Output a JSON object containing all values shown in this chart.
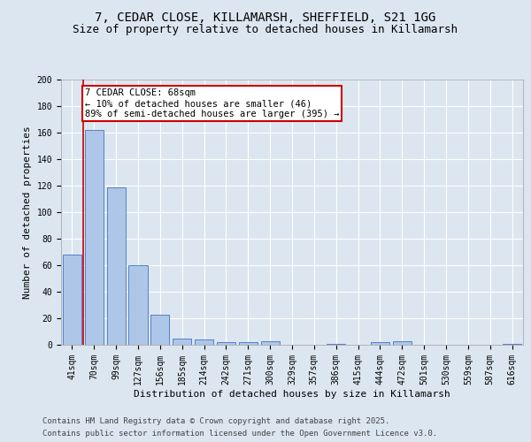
{
  "title_line1": "7, CEDAR CLOSE, KILLAMARSH, SHEFFIELD, S21 1GG",
  "title_line2": "Size of property relative to detached houses in Killamarsh",
  "xlabel": "Distribution of detached houses by size in Killamarsh",
  "ylabel": "Number of detached properties",
  "categories": [
    "41sqm",
    "70sqm",
    "99sqm",
    "127sqm",
    "156sqm",
    "185sqm",
    "214sqm",
    "242sqm",
    "271sqm",
    "300sqm",
    "329sqm",
    "357sqm",
    "386sqm",
    "415sqm",
    "444sqm",
    "472sqm",
    "501sqm",
    "530sqm",
    "559sqm",
    "587sqm",
    "616sqm"
  ],
  "values": [
    68,
    162,
    119,
    60,
    23,
    5,
    4,
    2,
    2,
    3,
    0,
    0,
    1,
    0,
    2,
    3,
    0,
    0,
    0,
    0,
    1
  ],
  "bar_color": "#aec6e8",
  "bar_edge_color": "#4472c4",
  "annotation_text": "7 CEDAR CLOSE: 68sqm\n← 10% of detached houses are smaller (46)\n89% of semi-detached houses are larger (395) →",
  "annotation_box_color": "#ffffff",
  "annotation_box_edge_color": "#cc0000",
  "subject_line_color": "#cc0000",
  "ylim": [
    0,
    200
  ],
  "yticks": [
    0,
    20,
    40,
    60,
    80,
    100,
    120,
    140,
    160,
    180,
    200
  ],
  "footer_line1": "Contains HM Land Registry data © Crown copyright and database right 2025.",
  "footer_line2": "Contains public sector information licensed under the Open Government Licence v3.0.",
  "background_color": "#dce6f0",
  "title_fontsize": 10,
  "subtitle_fontsize": 9,
  "axis_label_fontsize": 8,
  "tick_fontsize": 7,
  "annotation_fontsize": 7.5,
  "footer_fontsize": 6.5
}
